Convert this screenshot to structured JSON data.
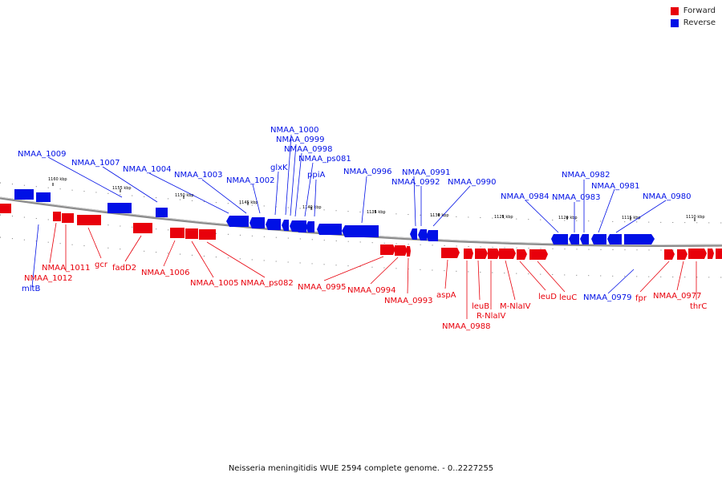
{
  "colors": {
    "forward": "#e8000b",
    "reverse": "#0010e6",
    "track": "#8a8a8a"
  },
  "legend": {
    "forward_label": "Forward",
    "reverse_label": "Reverse"
  },
  "caption": "Neisseria meningitidis WUE 2594 complete genome. - 0..2227255",
  "kbp_ticks": [
    "1160 kbp",
    "1155 kbp",
    "1150 kbp",
    "1145 kbp",
    "1140 kbp",
    "1135 kbp",
    "1130 kbp",
    "1125 kbp",
    "1120 kbp",
    "1115 kbp",
    "1110 kbp"
  ],
  "reverse_labels": [
    "NMAA_1009",
    "NMAA_1007",
    "NMAA_1004",
    "NMAA_1003",
    "NMAA_1002",
    "glxK",
    "NMAA_1000",
    "NMAA_0999",
    "NMAA_0998",
    "NMAA_ps081",
    "ppiA",
    "NMAA_0996",
    "NMAA_0991",
    "NMAA_0992",
    "NMAA_0990",
    "NMAA_0982",
    "NMAA_0984",
    "NMAA_0983",
    "NMAA_0981",
    "NMAA_0980",
    "mltB",
    "NMAA_0979"
  ],
  "forward_labels": [
    "NMAA_1011",
    "NMAA_1012",
    "gcr",
    "fadD2",
    "NMAA_1006",
    "NMAA_1005",
    "NMAA_ps082",
    "NMAA_0995",
    "NMAA_0994",
    "NMAA_0993",
    "aspA",
    "NMAA_0988",
    "leuB",
    "R-NlaIV",
    "M-NlaIV",
    "leuD",
    "leuC",
    "fpr",
    "NMAA_0977",
    "thrC"
  ]
}
